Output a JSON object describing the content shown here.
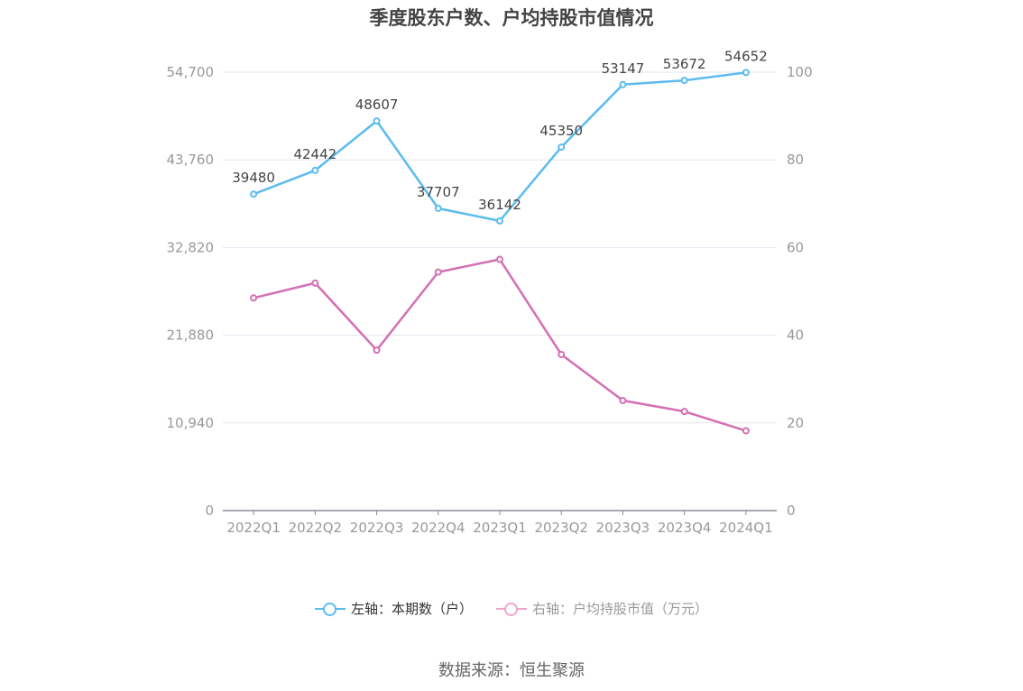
{
  "chart_data": {
    "type": "line",
    "title": "季度股东户数、户均持股市值情况",
    "categories": [
      "2022Q1",
      "2022Q2",
      "2022Q3",
      "2022Q4",
      "2023Q1",
      "2023Q2",
      "2023Q3",
      "2023Q4",
      "2024Q1"
    ],
    "left_axis": {
      "ticks": [
        "0",
        "10,940",
        "21,880",
        "32,820",
        "43,760",
        "54,700"
      ],
      "ylim": [
        0,
        54700
      ]
    },
    "right_axis": {
      "ticks": [
        "0",
        "20",
        "40",
        "60",
        "80",
        "100"
      ],
      "ylim": [
        0,
        100
      ]
    },
    "grid": true,
    "legend_position": "bottom",
    "series": [
      {
        "name": "左轴：本期数（户）",
        "axis": "left",
        "color": "#5bbcef",
        "values": [
          39480,
          42442,
          48607,
          37707,
          36142,
          45350,
          53147,
          53672,
          54652
        ],
        "labels": [
          "39480",
          "42442",
          "48607",
          "37707",
          "36142",
          "45350",
          "53147",
          "53672",
          "54652"
        ]
      },
      {
        "name": "右轴：户均持股市值（万元）",
        "axis": "right",
        "color": "#d46fb4",
        "values": [
          48.5,
          51.9,
          36.6,
          54.4,
          57.3,
          35.6,
          25.1,
          22.6,
          18.2
        ]
      }
    ]
  },
  "legend": {
    "left_label": "左轴：本期数（户）",
    "right_label": "右轴：户均持股市值（万元）",
    "left_color": "#5bbcef",
    "right_color": "#f0a5cf"
  },
  "source": "数据来源：恒生聚源"
}
